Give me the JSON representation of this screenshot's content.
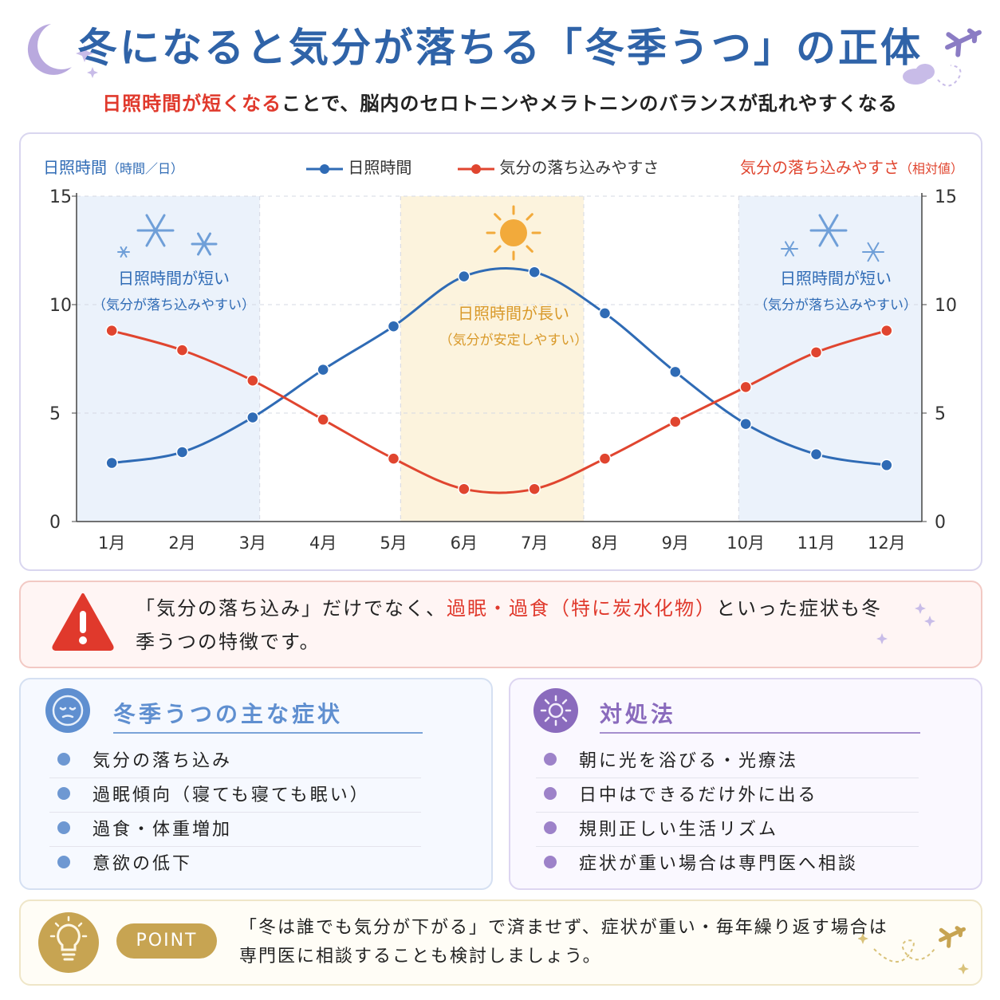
{
  "header": {
    "title": "冬になると気分が落ちる「冬季うつ」の正体",
    "subtitle_highlight": "日照時間が短くなる",
    "subtitle_rest": "ことで、脳内のセロトニンやメラトニンのバランスが乱れやすくなる"
  },
  "chart_data": {
    "type": "line",
    "categories": [
      "1月",
      "2月",
      "3月",
      "4月",
      "5月",
      "6月",
      "7月",
      "8月",
      "9月",
      "10月",
      "11月",
      "12月"
    ],
    "series": [
      {
        "name": "日照時間",
        "axis": "left",
        "color": "#2f6bb5",
        "values": [
          2.7,
          3.2,
          4.8,
          7.0,
          9.0,
          11.3,
          11.5,
          9.6,
          6.9,
          4.5,
          3.1,
          2.6
        ]
      },
      {
        "name": "気分の落ち込みやすさ",
        "axis": "right",
        "color": "#e0452f",
        "values": [
          8.8,
          7.9,
          6.5,
          4.7,
          2.9,
          1.5,
          1.5,
          2.9,
          4.6,
          6.2,
          7.8,
          8.8
        ]
      }
    ],
    "ylabel_left": "日照時間",
    "ylabel_left_unit": "（時間／日）",
    "ylabel_right": "気分の落ち込みやすさ",
    "ylabel_right_unit": "（相対値）",
    "ylim": [
      0,
      15
    ],
    "yticks": [
      "15",
      "10",
      "5",
      "0"
    ],
    "grid": true,
    "legend_position": "top-center",
    "annotations": {
      "winter_left": {
        "line1": "日照時間が短い",
        "line2": "（気分が落ち込みやすい）"
      },
      "summer": {
        "line1": "日照時間が長い",
        "line2": "（気分が安定しやすい）"
      },
      "winter_right": {
        "line1": "日照時間が短い",
        "line2": "（気分が落ち込みやすい）"
      }
    }
  },
  "alert": {
    "part1": "「気分の落ち込み」だけでなく、",
    "highlight": "過眠・過食（特に炭水化物）",
    "part2": "といった症状も冬季うつの特徴です。"
  },
  "symptoms": {
    "title": "冬季うつの主な症状",
    "items": [
      "気分の落ち込み",
      "過眠傾向（寝ても寝ても眠い）",
      "過食・体重増加",
      "意欲の低下"
    ]
  },
  "remedies": {
    "title": "対処法",
    "items": [
      "朝に光を浴びる・光療法",
      "日中はできるだけ外に出る",
      "規則正しい生活リズム",
      "症状が重い場合は専門医へ相談"
    ]
  },
  "point": {
    "badge": "POINT",
    "line1": "「冬は誰でも気分が下がる」で済ませず、症状が重い・毎年繰り返す場合は",
    "line2": "専門医に相談することも検討しましょう。"
  },
  "colors": {
    "blue": "#2f6bb5",
    "red": "#e0452f",
    "purple": "#8a6bbd",
    "gold": "#c7a452"
  }
}
